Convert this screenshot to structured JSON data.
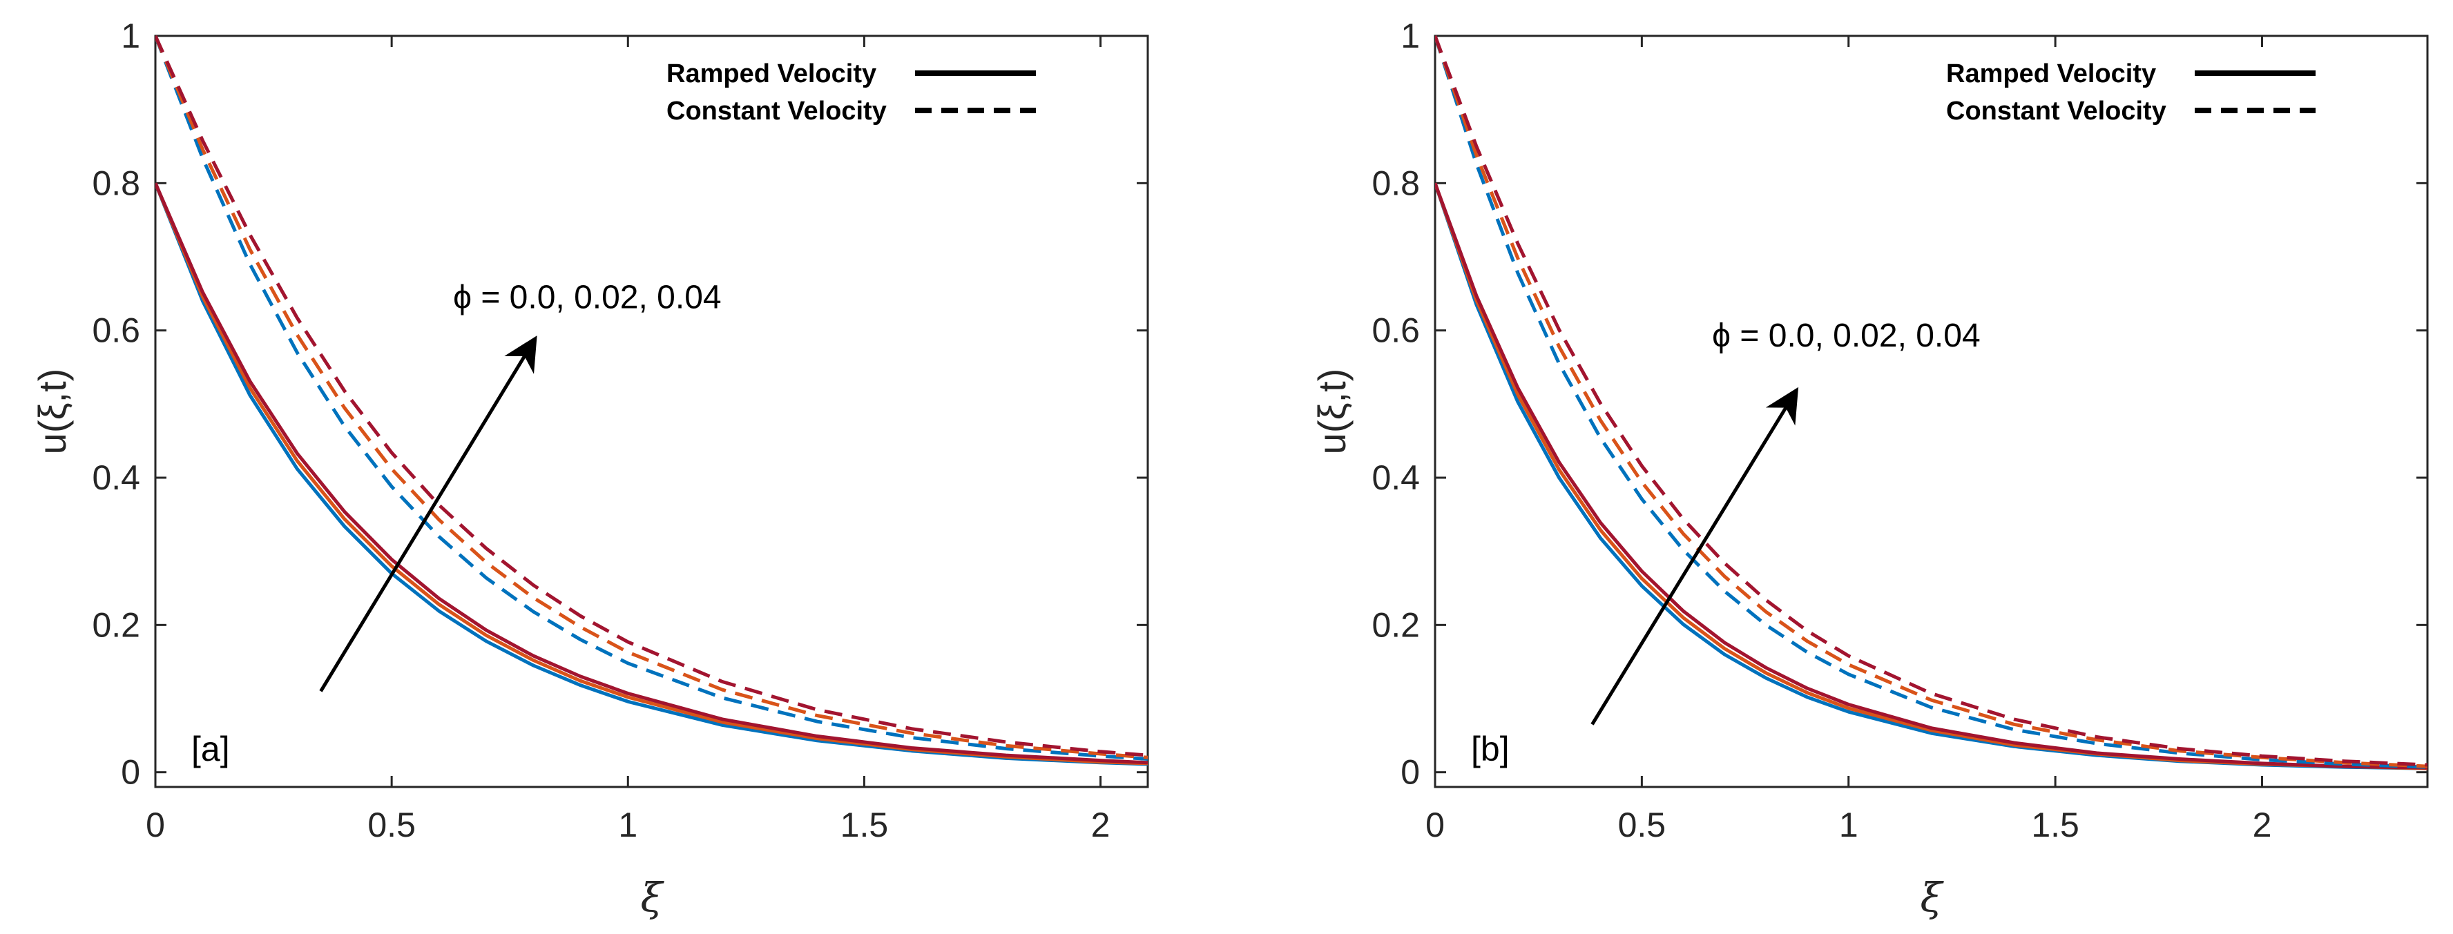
{
  "chart_data": [
    {
      "type": "line",
      "panel_label": "[a]",
      "xlabel": "ξ",
      "ylabel": "u(ξ,t)",
      "xlim": [
        0,
        2.1
      ],
      "ylim": [
        -0.02,
        1.0
      ],
      "xticks": [
        "0",
        "0.5",
        "1",
        "1.5",
        "2"
      ],
      "xtick_values": [
        0,
        0.5,
        1,
        1.5,
        2
      ],
      "yticks": [
        "0",
        "0.2",
        "0.4",
        "0.6",
        "0.8",
        "1"
      ],
      "ytick_values": [
        0,
        0.2,
        0.4,
        0.6,
        0.8,
        1.0
      ],
      "legend": [
        {
          "label": "Ramped Velocity",
          "style": "solid"
        },
        {
          "label": "Constant Velocity",
          "style": "dashed"
        }
      ],
      "annotation": "ϕ = 0.0, 0.02, 0.04",
      "x": [
        0,
        0.1,
        0.2,
        0.3,
        0.4,
        0.5,
        0.6,
        0.7,
        0.8,
        0.9,
        1.0,
        1.2,
        1.4,
        1.6,
        1.8,
        2.0,
        2.1
      ],
      "series": [
        {
          "name": "Ramped ϕ=0.0",
          "style": "solid",
          "color": "#0072BD",
          "values": [
            0.8,
            0.64,
            0.512,
            0.412,
            0.334,
            0.27,
            0.219,
            0.178,
            0.145,
            0.118,
            0.096,
            0.064,
            0.043,
            0.029,
            0.019,
            0.013,
            0.011
          ]
        },
        {
          "name": "Ramped ϕ=0.02",
          "style": "solid",
          "color": "#D95319",
          "values": [
            0.8,
            0.646,
            0.522,
            0.423,
            0.344,
            0.28,
            0.228,
            0.186,
            0.152,
            0.124,
            0.102,
            0.068,
            0.046,
            0.031,
            0.021,
            0.014,
            0.012
          ]
        },
        {
          "name": "Ramped ϕ=0.04",
          "style": "solid",
          "color": "#A2142F",
          "values": [
            0.8,
            0.652,
            0.531,
            0.433,
            0.354,
            0.289,
            0.236,
            0.193,
            0.158,
            0.13,
            0.107,
            0.072,
            0.049,
            0.033,
            0.023,
            0.016,
            0.013
          ]
        },
        {
          "name": "Constant ϕ=0.0",
          "style": "dashed",
          "color": "#0072BD",
          "values": [
            1.0,
            0.834,
            0.69,
            0.57,
            0.47,
            0.388,
            0.32,
            0.264,
            0.218,
            0.18,
            0.148,
            0.101,
            0.069,
            0.047,
            0.032,
            0.022,
            0.018
          ]
        },
        {
          "name": "Constant ϕ=0.02",
          "style": "dashed",
          "color": "#D95319",
          "values": [
            1.0,
            0.846,
            0.71,
            0.594,
            0.495,
            0.412,
            0.343,
            0.285,
            0.237,
            0.197,
            0.163,
            0.112,
            0.077,
            0.053,
            0.036,
            0.025,
            0.02
          ]
        },
        {
          "name": "Constant ϕ=0.04",
          "style": "dashed",
          "color": "#A2142F",
          "values": [
            1.0,
            0.858,
            0.73,
            0.617,
            0.518,
            0.434,
            0.363,
            0.304,
            0.254,
            0.212,
            0.177,
            0.123,
            0.085,
            0.059,
            0.041,
            0.028,
            0.023
          ]
        }
      ],
      "arrow": {
        "from": [
          0.35,
          0.11
        ],
        "to": [
          0.8,
          0.585
        ]
      },
      "annotation_anchor": [
        0.63,
        0.63
      ]
    },
    {
      "type": "line",
      "panel_label": "[b]",
      "xlabel": "ξ",
      "ylabel": "u(ξ,t)",
      "xlim": [
        0,
        2.4
      ],
      "ylim": [
        -0.02,
        1.0
      ],
      "xticks": [
        "0",
        "0.5",
        "1",
        "1.5",
        "2"
      ],
      "xtick_values": [
        0,
        0.5,
        1,
        1.5,
        2
      ],
      "yticks": [
        "0",
        "0.2",
        "0.4",
        "0.6",
        "0.8",
        "1"
      ],
      "ytick_values": [
        0,
        0.2,
        0.4,
        0.6,
        0.8,
        1.0
      ],
      "legend": [
        {
          "label": "Ramped Velocity",
          "style": "solid"
        },
        {
          "label": "Constant Velocity",
          "style": "dashed"
        }
      ],
      "annotation": "ϕ = 0.0, 0.02, 0.04",
      "x": [
        0,
        0.1,
        0.2,
        0.3,
        0.4,
        0.5,
        0.6,
        0.7,
        0.8,
        0.9,
        1.0,
        1.2,
        1.4,
        1.6,
        1.8,
        2.0,
        2.2,
        2.4
      ],
      "series": [
        {
          "name": "Ramped ϕ=0.0",
          "style": "solid",
          "color": "#0072BD",
          "values": [
            0.8,
            0.635,
            0.503,
            0.4,
            0.318,
            0.253,
            0.201,
            0.16,
            0.128,
            0.102,
            0.082,
            0.053,
            0.035,
            0.023,
            0.015,
            0.01,
            0.007,
            0.005
          ]
        },
        {
          "name": "Ramped ϕ=0.02",
          "style": "solid",
          "color": "#D95319",
          "values": [
            0.8,
            0.641,
            0.513,
            0.411,
            0.329,
            0.263,
            0.21,
            0.168,
            0.135,
            0.108,
            0.087,
            0.057,
            0.037,
            0.025,
            0.016,
            0.011,
            0.008,
            0.005
          ]
        },
        {
          "name": "Ramped ϕ=0.04",
          "style": "solid",
          "color": "#A2142F",
          "values": [
            0.8,
            0.647,
            0.522,
            0.421,
            0.339,
            0.273,
            0.219,
            0.176,
            0.142,
            0.114,
            0.092,
            0.06,
            0.04,
            0.026,
            0.018,
            0.012,
            0.008,
            0.006
          ]
        },
        {
          "name": "Constant ϕ=0.0",
          "style": "dashed",
          "color": "#0072BD",
          "values": [
            1.0,
            0.826,
            0.678,
            0.555,
            0.454,
            0.371,
            0.302,
            0.246,
            0.2,
            0.163,
            0.133,
            0.088,
            0.058,
            0.039,
            0.026,
            0.017,
            0.011,
            0.007
          ]
        },
        {
          "name": "Constant ϕ=0.02",
          "style": "dashed",
          "color": "#D95319",
          "values": [
            1.0,
            0.838,
            0.698,
            0.578,
            0.478,
            0.394,
            0.324,
            0.266,
            0.218,
            0.178,
            0.146,
            0.098,
            0.065,
            0.044,
            0.029,
            0.02,
            0.013,
            0.008
          ]
        },
        {
          "name": "Constant ϕ=0.04",
          "style": "dashed",
          "color": "#A2142F",
          "values": [
            1.0,
            0.85,
            0.718,
            0.601,
            0.501,
            0.416,
            0.344,
            0.284,
            0.234,
            0.192,
            0.158,
            0.107,
            0.072,
            0.048,
            0.032,
            0.022,
            0.015,
            0.01
          ]
        }
      ],
      "arrow": {
        "from": [
          0.38,
          0.065
        ],
        "to": [
          0.87,
          0.515
        ]
      },
      "annotation_anchor": [
        0.67,
        0.578
      ]
    }
  ]
}
